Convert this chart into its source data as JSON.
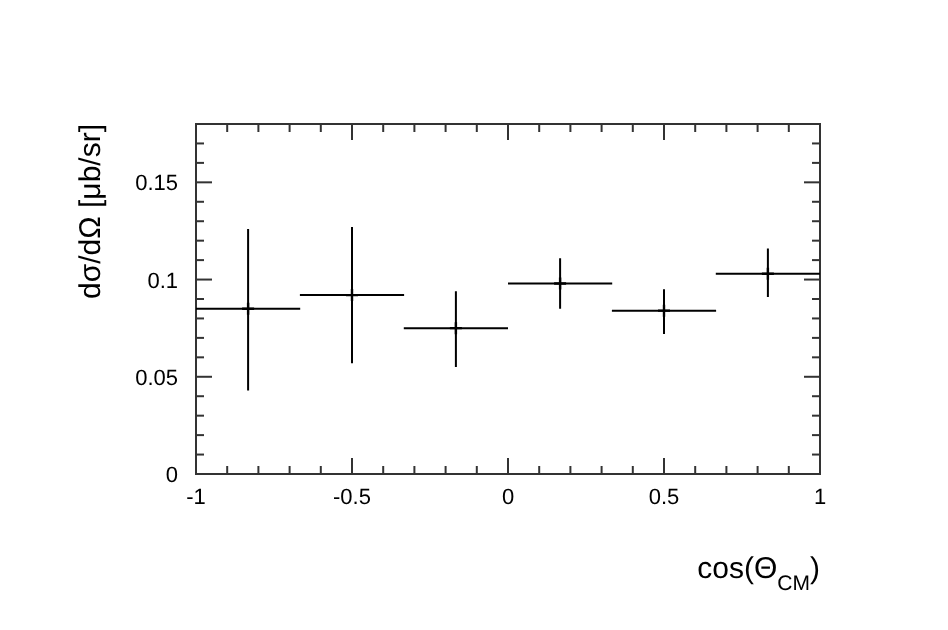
{
  "chart_data": {
    "type": "scatter",
    "xlabel": "cos(Θ$_{CM}$)",
    "ylabel": "dσ/dΩ [μb/sr]",
    "x": [
      -0.833,
      -0.5,
      -0.167,
      0.167,
      0.5,
      0.833
    ],
    "values": [
      0.085,
      0.092,
      0.075,
      0.098,
      0.084,
      0.103
    ],
    "errors": [
      [
        0.043,
        0.126
      ],
      [
        0.057,
        0.127
      ],
      [
        0.055,
        0.094
      ],
      [
        0.085,
        0.111
      ],
      [
        0.072,
        0.095
      ],
      [
        0.091,
        0.116
      ]
    ],
    "xerrors": [
      0.167,
      0.167,
      0.167,
      0.167,
      0.167,
      0.167
    ],
    "color": "#000000",
    "marker": "cross",
    "grid": false,
    "xlim": [
      -1,
      1
    ],
    "ylim": [
      0,
      0.18
    ],
    "xticks": [
      -1,
      {
        "value": -0.9,
        "label": null
      },
      {
        "value": -0.8,
        "label": null
      },
      {
        "value": -0.7,
        "label": null
      },
      {
        "value": -0.6,
        "label": null
      },
      -0.5,
      {
        "value": -0.4,
        "label": null
      },
      {
        "value": -0.3,
        "label": null
      },
      {
        "value": -0.2,
        "label": null
      },
      {
        "value": -0.1,
        "label": null
      },
      0,
      {
        "value": 0.1,
        "label": null
      },
      {
        "value": 0.2,
        "label": null
      },
      {
        "value": 0.3,
        "label": null
      },
      {
        "value": 0.4,
        "label": null
      },
      0.5,
      {
        "value": 0.6,
        "label": null
      },
      {
        "value": 0.7,
        "label": null
      },
      {
        "value": 0.8,
        "label": null
      },
      {
        "value": 0.9,
        "label": null
      },
      1
    ],
    "yticks": [
      0,
      {
        "value": 0.01,
        "label": null
      },
      {
        "value": 0.02,
        "label": null
      },
      {
        "value": 0.03,
        "label": null
      },
      {
        "value": 0.04,
        "label": null
      },
      0.05,
      {
        "value": 0.06,
        "label": null
      },
      {
        "value": 0.07,
        "label": null
      },
      {
        "value": 0.08,
        "label": null
      },
      {
        "value": 0.09,
        "label": null
      },
      0.1,
      {
        "value": 0.11,
        "label": null
      },
      {
        "value": 0.12,
        "label": null
      },
      {
        "value": 0.13,
        "label": null
      },
      {
        "value": 0.14,
        "label": null
      },
      0.15,
      {
        "value": 0.16,
        "label": null
      },
      {
        "value": 0.17,
        "label": null
      }
    ]
  }
}
